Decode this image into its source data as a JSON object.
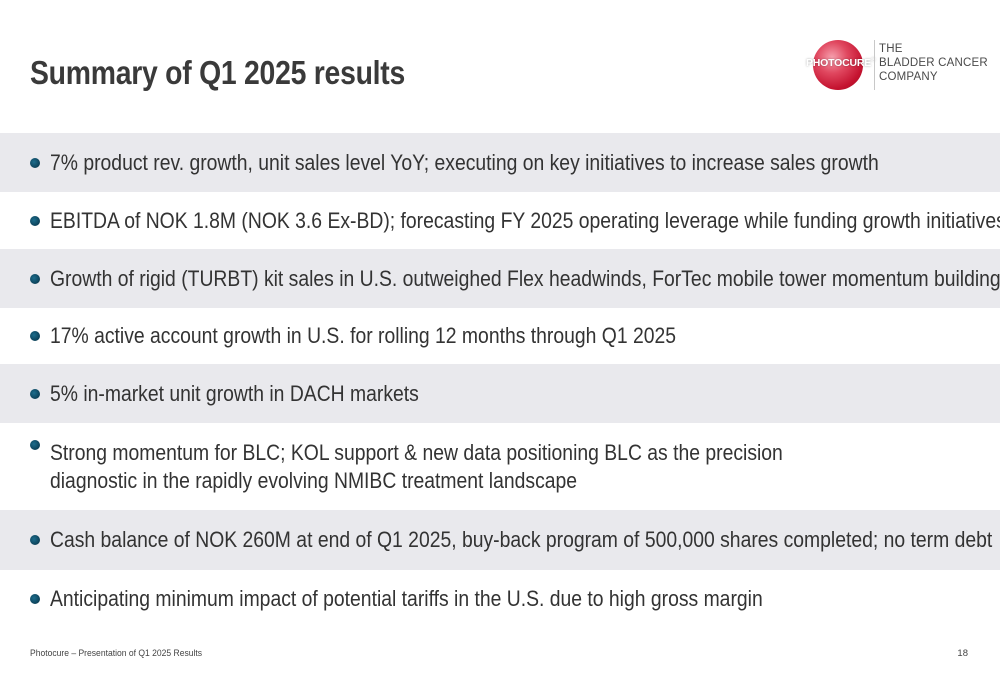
{
  "slide": {
    "title": "Summary of Q1 2025 results",
    "logo": {
      "wordmark": "PHOTOCURE",
      "registered_mark": "®",
      "tagline_lines": [
        "THE",
        "BLADDER CANCER",
        "COMPANY"
      ]
    },
    "bullets": [
      {
        "text": "7% product rev. growth, unit sales level YoY; executing on key initiatives to increase sales growth",
        "shaded": true
      },
      {
        "text": "EBITDA of NOK 1.8M (NOK 3.6 Ex-BD); forecasting FY 2025 operating leverage while funding growth initiatives",
        "shaded": false
      },
      {
        "text": "Growth of rigid (TURBT) kit sales in U.S. outweighed Flex headwinds, ForTec mobile tower momentum building",
        "shaded": true
      },
      {
        "text": "17% active account growth in U.S. for rolling 12 months through Q1 2025",
        "shaded": false
      },
      {
        "text": "5% in-market unit growth in DACH markets",
        "shaded": true
      },
      {
        "text": "Strong momentum for BLC; KOL support & new data positioning BLC as the precision diagnostic in the rapidly evolving NMIBC treatment landscape",
        "shaded": false
      },
      {
        "text": "Cash balance of NOK 260M at end of Q1 2025, buy-back program of 500,000 shares completed; no term debt",
        "shaded": true
      },
      {
        "text": "Anticipating minimum impact of potential tariffs in the U.S. due to high gross margin",
        "shaded": false
      }
    ],
    "footer": {
      "left": "Photocure – Presentation of Q1 2025 Results",
      "page_number": "18"
    },
    "colors": {
      "row_shade": "#e9e9ed",
      "bullet": "#0e4760",
      "brand_red": "#c4122f",
      "title": "#3a3a3a"
    }
  }
}
